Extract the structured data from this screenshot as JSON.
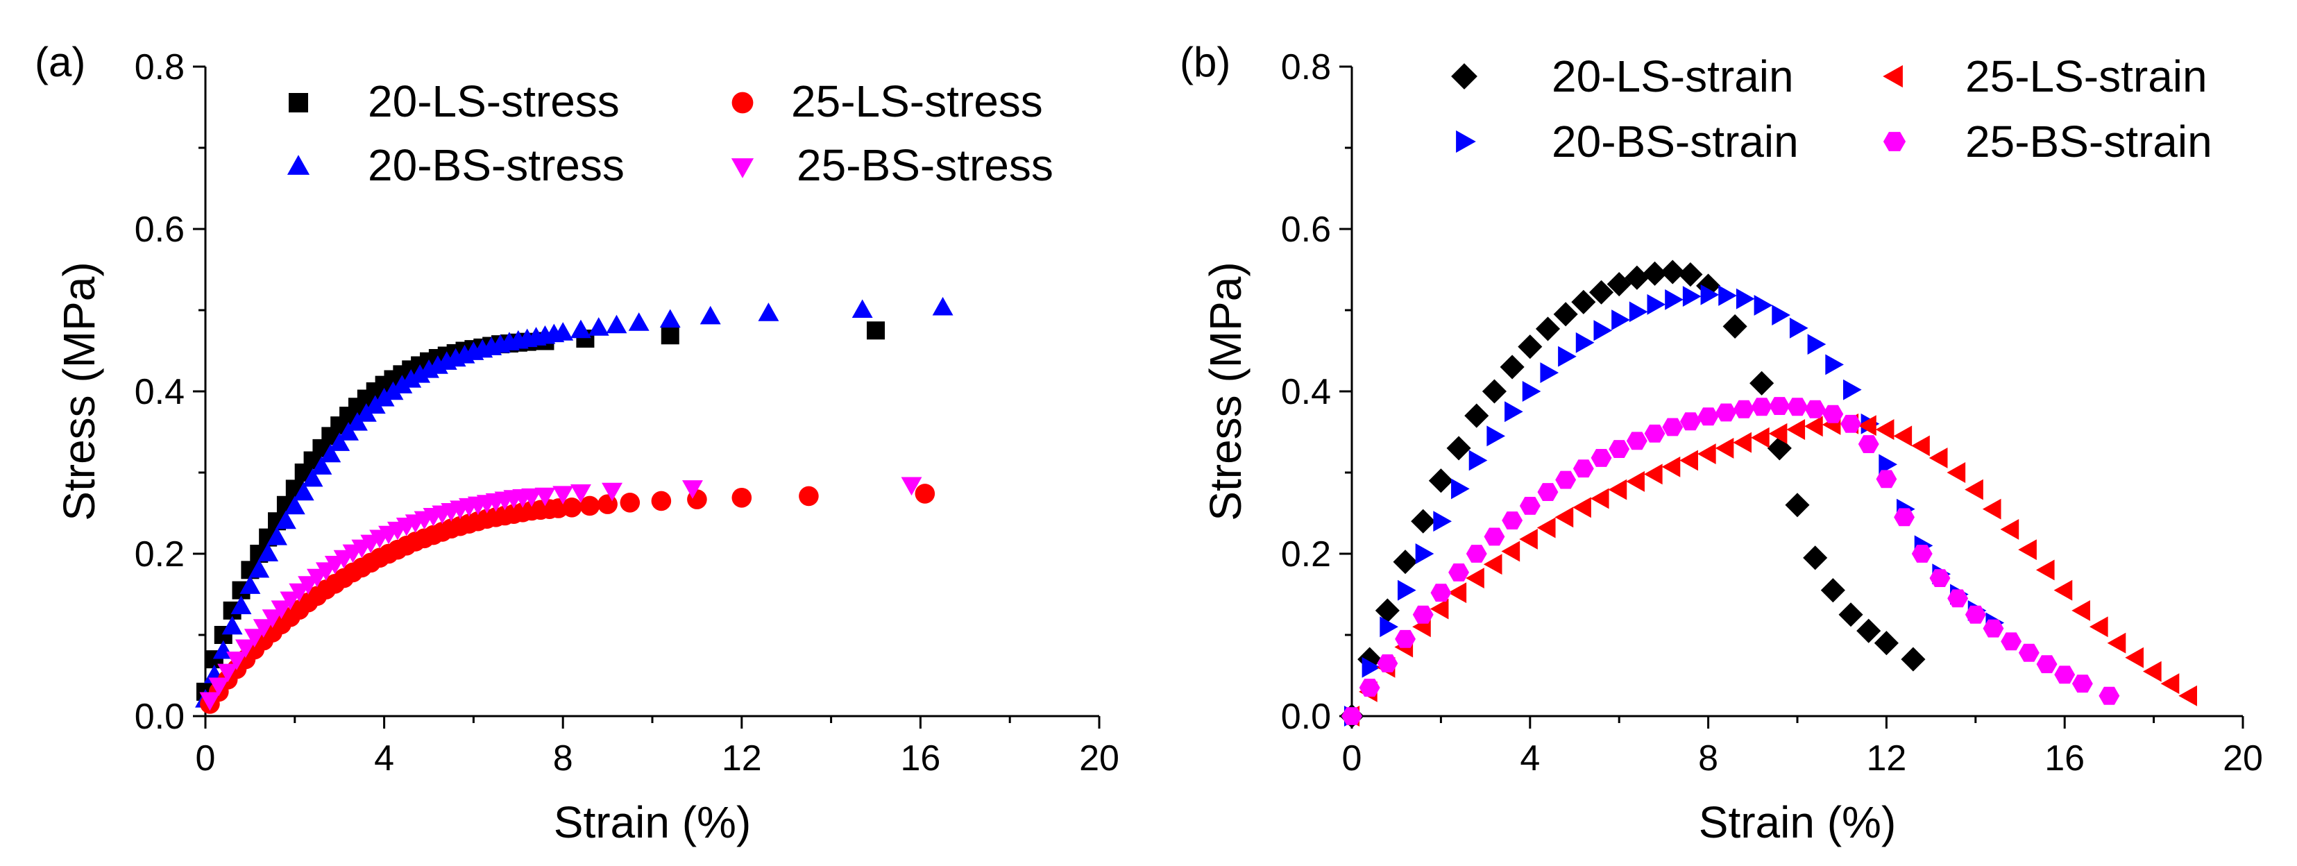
{
  "chart_data": [
    {
      "type": "scatter",
      "panel_label": "(a)",
      "xlabel": "Strain (%)",
      "ylabel": "Stress (MPa)",
      "xlim": [
        0,
        20
      ],
      "ylim": [
        0,
        0.8
      ],
      "xticks": [
        "0",
        "4",
        "8",
        "12",
        "16",
        "20"
      ],
      "yticks": [
        "0.0",
        "0.2",
        "0.4",
        "0.6",
        "0.8"
      ],
      "legend_position": "top",
      "series": [
        {
          "name": "20-LS-stress",
          "marker": "square",
          "color": "#000000",
          "x": [
            0,
            0.2,
            0.4,
            0.6,
            0.8,
            1.0,
            1.2,
            1.4,
            1.6,
            1.8,
            2.0,
            2.2,
            2.4,
            2.6,
            2.8,
            3.0,
            3.2,
            3.4,
            3.6,
            3.8,
            4.0,
            4.2,
            4.4,
            4.6,
            4.8,
            5.0,
            5.2,
            5.4,
            5.6,
            5.8,
            6.0,
            6.2,
            6.4,
            6.6,
            6.8,
            7.0,
            7.2,
            7.6,
            8.5,
            10.4,
            15.0
          ],
          "y": [
            0.03,
            0.07,
            0.1,
            0.13,
            0.155,
            0.18,
            0.2,
            0.22,
            0.24,
            0.26,
            0.28,
            0.3,
            0.315,
            0.33,
            0.345,
            0.358,
            0.37,
            0.381,
            0.391,
            0.4,
            0.408,
            0.415,
            0.421,
            0.427,
            0.432,
            0.437,
            0.441,
            0.444,
            0.447,
            0.45,
            0.452,
            0.454,
            0.456,
            0.458,
            0.459,
            0.46,
            0.461,
            0.462,
            0.465,
            0.469,
            0.475
          ]
        },
        {
          "name": "20-BS-stress",
          "marker": "triangle-up",
          "color": "#0000ff",
          "x": [
            0,
            0.2,
            0.4,
            0.6,
            0.8,
            1.0,
            1.2,
            1.4,
            1.6,
            1.8,
            2.0,
            2.2,
            2.4,
            2.6,
            2.8,
            3.0,
            3.2,
            3.4,
            3.6,
            3.8,
            4.0,
            4.2,
            4.4,
            4.6,
            4.8,
            5.0,
            5.2,
            5.4,
            5.6,
            5.8,
            6.0,
            6.2,
            6.4,
            6.6,
            6.8,
            7.0,
            7.2,
            7.4,
            7.6,
            7.8,
            8.0,
            8.4,
            8.8,
            9.2,
            9.7,
            10.4,
            11.3,
            12.6,
            14.7,
            16.5
          ],
          "y": [
            0.02,
            0.05,
            0.08,
            0.11,
            0.135,
            0.16,
            0.18,
            0.2,
            0.22,
            0.24,
            0.258,
            0.275,
            0.292,
            0.307,
            0.322,
            0.336,
            0.349,
            0.361,
            0.372,
            0.382,
            0.391,
            0.399,
            0.407,
            0.414,
            0.42,
            0.426,
            0.431,
            0.436,
            0.44,
            0.444,
            0.448,
            0.451,
            0.454,
            0.457,
            0.46,
            0.462,
            0.464,
            0.466,
            0.468,
            0.47,
            0.472,
            0.475,
            0.478,
            0.481,
            0.484,
            0.488,
            0.492,
            0.496,
            0.5,
            0.503
          ]
        },
        {
          "name": "25-LS-stress",
          "marker": "circle",
          "color": "#ff0000",
          "x": [
            0.1,
            0.3,
            0.5,
            0.7,
            0.9,
            1.1,
            1.3,
            1.5,
            1.7,
            1.9,
            2.1,
            2.3,
            2.5,
            2.7,
            2.9,
            3.1,
            3.3,
            3.5,
            3.7,
            3.9,
            4.1,
            4.3,
            4.5,
            4.7,
            4.9,
            5.1,
            5.3,
            5.5,
            5.7,
            5.9,
            6.1,
            6.3,
            6.5,
            6.7,
            6.9,
            7.1,
            7.3,
            7.5,
            7.7,
            7.9,
            8.2,
            8.6,
            9.0,
            9.5,
            10.2,
            11.0,
            12.0,
            13.5,
            16.1
          ],
          "y": [
            0.015,
            0.03,
            0.045,
            0.058,
            0.07,
            0.082,
            0.093,
            0.103,
            0.113,
            0.122,
            0.131,
            0.14,
            0.148,
            0.156,
            0.163,
            0.17,
            0.177,
            0.183,
            0.189,
            0.195,
            0.2,
            0.205,
            0.21,
            0.215,
            0.219,
            0.223,
            0.227,
            0.231,
            0.234,
            0.237,
            0.24,
            0.243,
            0.245,
            0.247,
            0.249,
            0.251,
            0.253,
            0.254,
            0.255,
            0.256,
            0.257,
            0.259,
            0.261,
            0.263,
            0.265,
            0.267,
            0.269,
            0.271,
            0.274
          ]
        },
        {
          "name": "25-BS-stress",
          "marker": "triangle-down",
          "color": "#ff00ff",
          "x": [
            0.1,
            0.3,
            0.5,
            0.7,
            0.9,
            1.1,
            1.3,
            1.5,
            1.7,
            1.9,
            2.1,
            2.3,
            2.5,
            2.7,
            2.9,
            3.1,
            3.3,
            3.5,
            3.7,
            3.9,
            4.1,
            4.3,
            4.5,
            4.7,
            4.9,
            5.1,
            5.3,
            5.5,
            5.7,
            5.9,
            6.1,
            6.3,
            6.5,
            6.7,
            6.9,
            7.1,
            7.3,
            7.6,
            8.0,
            8.4,
            9.1,
            10.9,
            15.8
          ],
          "y": [
            0.02,
            0.038,
            0.055,
            0.07,
            0.085,
            0.098,
            0.11,
            0.122,
            0.133,
            0.144,
            0.154,
            0.163,
            0.172,
            0.18,
            0.188,
            0.195,
            0.202,
            0.208,
            0.214,
            0.22,
            0.225,
            0.23,
            0.235,
            0.239,
            0.243,
            0.247,
            0.25,
            0.253,
            0.256,
            0.259,
            0.261,
            0.263,
            0.265,
            0.267,
            0.269,
            0.27,
            0.271,
            0.272,
            0.274,
            0.276,
            0.278,
            0.281,
            0.285
          ]
        }
      ]
    },
    {
      "type": "scatter",
      "panel_label": "(b)",
      "xlabel": "Strain (%)",
      "ylabel": "Stress (MPa)",
      "xlim": [
        0,
        20
      ],
      "ylim": [
        0,
        0.8
      ],
      "xticks": [
        "0",
        "4",
        "8",
        "12",
        "16",
        "20"
      ],
      "yticks": [
        "0.0",
        "0.2",
        "0.4",
        "0.6",
        "0.8"
      ],
      "legend_position": "top",
      "series": [
        {
          "name": "20-LS-strain",
          "marker": "diamond",
          "color": "#000000",
          "x": [
            0,
            0.4,
            0.8,
            1.2,
            1.6,
            2.0,
            2.4,
            2.8,
            3.2,
            3.6,
            4.0,
            4.4,
            4.8,
            5.2,
            5.6,
            6.0,
            6.4,
            6.8,
            7.2,
            7.6,
            8.0,
            8.6,
            9.2,
            9.6,
            10.0,
            10.4,
            10.8,
            11.2,
            11.6,
            12.0,
            12.6
          ],
          "y": [
            0,
            0.07,
            0.13,
            0.19,
            0.24,
            0.29,
            0.33,
            0.37,
            0.4,
            0.43,
            0.455,
            0.477,
            0.495,
            0.51,
            0.522,
            0.532,
            0.54,
            0.545,
            0.547,
            0.544,
            0.53,
            0.48,
            0.41,
            0.33,
            0.26,
            0.195,
            0.155,
            0.125,
            0.105,
            0.09,
            0.07
          ]
        },
        {
          "name": "20-BS-strain",
          "marker": "triangle-right",
          "color": "#0000ff",
          "x": [
            0,
            0.4,
            0.8,
            1.2,
            1.6,
            2.0,
            2.4,
            2.8,
            3.2,
            3.6,
            4.0,
            4.4,
            4.8,
            5.2,
            5.6,
            6.0,
            6.4,
            6.8,
            7.2,
            7.6,
            8.0,
            8.4,
            8.8,
            9.2,
            9.6,
            10.0,
            10.4,
            10.8,
            11.2,
            11.6,
            12.0,
            12.4,
            12.8,
            13.2,
            13.6,
            14.0,
            14.4
          ],
          "y": [
            0,
            0.06,
            0.11,
            0.155,
            0.2,
            0.24,
            0.28,
            0.315,
            0.345,
            0.375,
            0.4,
            0.423,
            0.443,
            0.46,
            0.475,
            0.488,
            0.498,
            0.507,
            0.513,
            0.517,
            0.519,
            0.518,
            0.514,
            0.506,
            0.494,
            0.478,
            0.458,
            0.433,
            0.402,
            0.36,
            0.31,
            0.255,
            0.21,
            0.175,
            0.15,
            0.13,
            0.115
          ]
        },
        {
          "name": "25-LS-strain",
          "marker": "triangle-left",
          "color": "#ff0000",
          "x": [
            0,
            0.4,
            0.8,
            1.2,
            1.6,
            2.0,
            2.4,
            2.8,
            3.2,
            3.6,
            4.0,
            4.4,
            4.8,
            5.2,
            5.6,
            6.0,
            6.4,
            6.8,
            7.2,
            7.6,
            8.0,
            8.4,
            8.8,
            9.2,
            9.6,
            10.0,
            10.4,
            10.8,
            11.2,
            11.6,
            12.0,
            12.4,
            12.8,
            13.2,
            13.6,
            14.0,
            14.4,
            14.8,
            15.2,
            15.6,
            16.0,
            16.4,
            16.8,
            17.2,
            17.6,
            18.0,
            18.4,
            18.8
          ],
          "y": [
            0,
            0.03,
            0.06,
            0.085,
            0.11,
            0.132,
            0.152,
            0.17,
            0.187,
            0.203,
            0.218,
            0.232,
            0.245,
            0.257,
            0.268,
            0.279,
            0.289,
            0.298,
            0.307,
            0.315,
            0.323,
            0.33,
            0.337,
            0.343,
            0.348,
            0.353,
            0.357,
            0.359,
            0.36,
            0.358,
            0.353,
            0.345,
            0.333,
            0.318,
            0.3,
            0.279,
            0.255,
            0.23,
            0.205,
            0.18,
            0.155,
            0.13,
            0.11,
            0.09,
            0.072,
            0.055,
            0.04,
            0.025
          ]
        },
        {
          "name": "25-BS-strain",
          "marker": "hexagon",
          "color": "#ff00ff",
          "x": [
            0,
            0.4,
            0.8,
            1.2,
            1.6,
            2.0,
            2.4,
            2.8,
            3.2,
            3.6,
            4.0,
            4.4,
            4.8,
            5.2,
            5.6,
            6.0,
            6.4,
            6.8,
            7.2,
            7.6,
            8.0,
            8.4,
            8.8,
            9.2,
            9.6,
            10.0,
            10.4,
            10.8,
            11.2,
            11.6,
            12.0,
            12.4,
            12.8,
            13.2,
            13.6,
            14.0,
            14.4,
            14.8,
            15.2,
            15.6,
            16.0,
            16.4,
            17.0
          ],
          "y": [
            0,
            0.035,
            0.065,
            0.095,
            0.125,
            0.152,
            0.177,
            0.2,
            0.221,
            0.241,
            0.259,
            0.276,
            0.291,
            0.305,
            0.318,
            0.329,
            0.339,
            0.348,
            0.356,
            0.363,
            0.369,
            0.374,
            0.378,
            0.381,
            0.382,
            0.381,
            0.378,
            0.372,
            0.36,
            0.335,
            0.292,
            0.245,
            0.2,
            0.17,
            0.145,
            0.125,
            0.108,
            0.092,
            0.078,
            0.064,
            0.051,
            0.04,
            0.025
          ]
        }
      ]
    }
  ]
}
